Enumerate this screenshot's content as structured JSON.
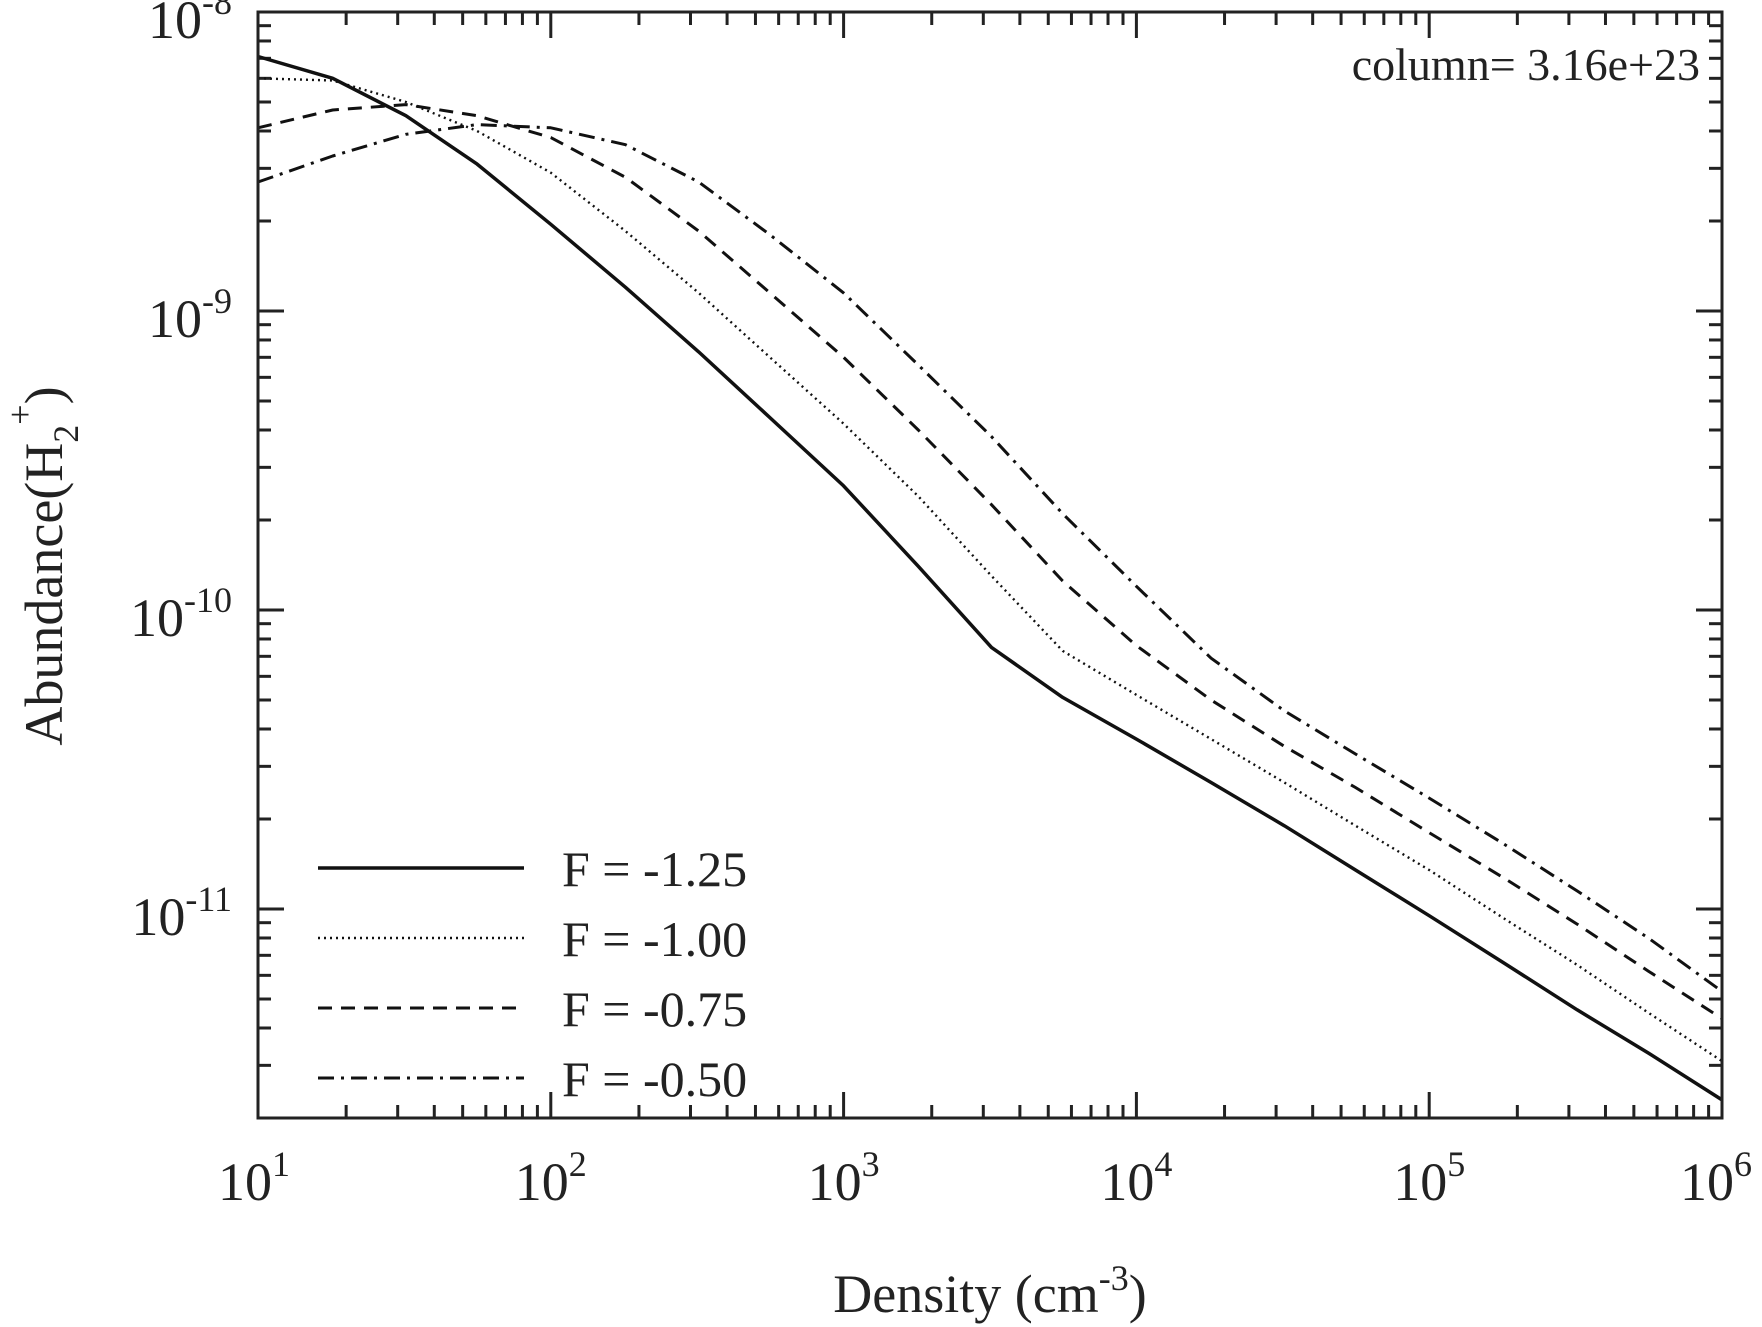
{
  "chart_data": {
    "type": "line",
    "x_scale": "log",
    "y_scale": "log",
    "xlim": [
      10,
      1000000
    ],
    "ylim": [
      2e-12,
      1e-08
    ],
    "x_ticks": [
      {
        "value": 10,
        "base": "10",
        "exp": "1"
      },
      {
        "value": 100,
        "base": "10",
        "exp": "2"
      },
      {
        "value": 1000,
        "base": "10",
        "exp": "3"
      },
      {
        "value": 10000,
        "base": "10",
        "exp": "4"
      },
      {
        "value": 100000,
        "base": "10",
        "exp": "5"
      },
      {
        "value": 1000000,
        "base": "10",
        "exp": "6"
      }
    ],
    "y_ticks": [
      {
        "value": 1e-11,
        "base": "10",
        "exp": "-11"
      },
      {
        "value": 1e-10,
        "base": "10",
        "exp": "-10"
      },
      {
        "value": 1e-09,
        "base": "10",
        "exp": "-9"
      },
      {
        "value": 1e-08,
        "base": "10",
        "exp": "-8"
      }
    ],
    "xlabel": {
      "text": "Density (cm",
      "sup": "-3",
      "close": ")"
    },
    "ylabel": {
      "text": "Abundance(H",
      "sub": "2",
      "sup": "+",
      "close": ")"
    },
    "annotation": "column= 3.16e+23",
    "legend_position": "bottom-left",
    "series": [
      {
        "name": "F = -1.25",
        "dash": "solid",
        "x": [
          10,
          18,
          32,
          56,
          100,
          180,
          320,
          560,
          1000,
          1800,
          3200,
          5600,
          10000,
          18000,
          32000,
          56000,
          100000,
          180000,
          320000,
          560000,
          1000000
        ],
        "y": [
          7.1e-09,
          6e-09,
          4.5e-09,
          3.1e-09,
          1.95e-09,
          1.2e-09,
          7.3e-10,
          4.4e-10,
          2.6e-10,
          1.4e-10,
          7.5e-11,
          5.1e-11,
          3.7e-11,
          2.65e-11,
          1.9e-11,
          1.35e-11,
          9.5e-12,
          6.6e-12,
          4.6e-12,
          3.3e-12,
          2.3e-12
        ]
      },
      {
        "name": "F = -1.00",
        "dash": "dotted",
        "x": [
          10,
          18,
          32,
          56,
          100,
          180,
          320,
          560,
          1000,
          1800,
          3200,
          5600,
          10000,
          18000,
          32000,
          56000,
          100000,
          180000,
          320000,
          560000,
          1000000
        ],
        "y": [
          6e-09,
          5.9e-09,
          5e-09,
          4e-09,
          2.9e-09,
          1.85e-09,
          1.15e-09,
          7e-10,
          4.2e-10,
          2.4e-10,
          1.3e-10,
          7.3e-11,
          5.2e-11,
          3.7e-11,
          2.65e-11,
          1.9e-11,
          1.35e-11,
          9.3e-12,
          6.5e-12,
          4.5e-12,
          3.1e-12
        ]
      },
      {
        "name": "F = -0.75",
        "dash": "dashed",
        "x": [
          10,
          18,
          32,
          56,
          100,
          180,
          320,
          560,
          1000,
          1800,
          3200,
          5600,
          10000,
          18000,
          32000,
          56000,
          100000,
          180000,
          320000,
          560000,
          1000000
        ],
        "y": [
          4.1e-09,
          4.7e-09,
          4.9e-09,
          4.5e-09,
          3.8e-09,
          2.8e-09,
          1.85e-09,
          1.15e-09,
          7e-10,
          4e-10,
          2.25e-10,
          1.25e-10,
          7.6e-11,
          5e-11,
          3.5e-11,
          2.55e-11,
          1.8e-11,
          1.27e-11,
          8.9e-12,
          6.2e-12,
          4.3e-12
        ]
      },
      {
        "name": "F = -0.50",
        "dash": "dash-dot",
        "x": [
          10,
          18,
          32,
          56,
          100,
          180,
          320,
          560,
          1000,
          1800,
          3200,
          5600,
          10000,
          18000,
          32000,
          56000,
          100000,
          180000,
          320000,
          560000,
          1000000
        ],
        "y": [
          2.7e-09,
          3.3e-09,
          3.9e-09,
          4.2e-09,
          4.1e-09,
          3.6e-09,
          2.7e-09,
          1.8e-09,
          1.15e-09,
          6.6e-10,
          3.8e-10,
          2.1e-10,
          1.2e-10,
          6.9e-11,
          4.6e-11,
          3.3e-11,
          2.35e-11,
          1.65e-11,
          1.15e-11,
          8e-12,
          5.3e-12
        ]
      }
    ]
  }
}
